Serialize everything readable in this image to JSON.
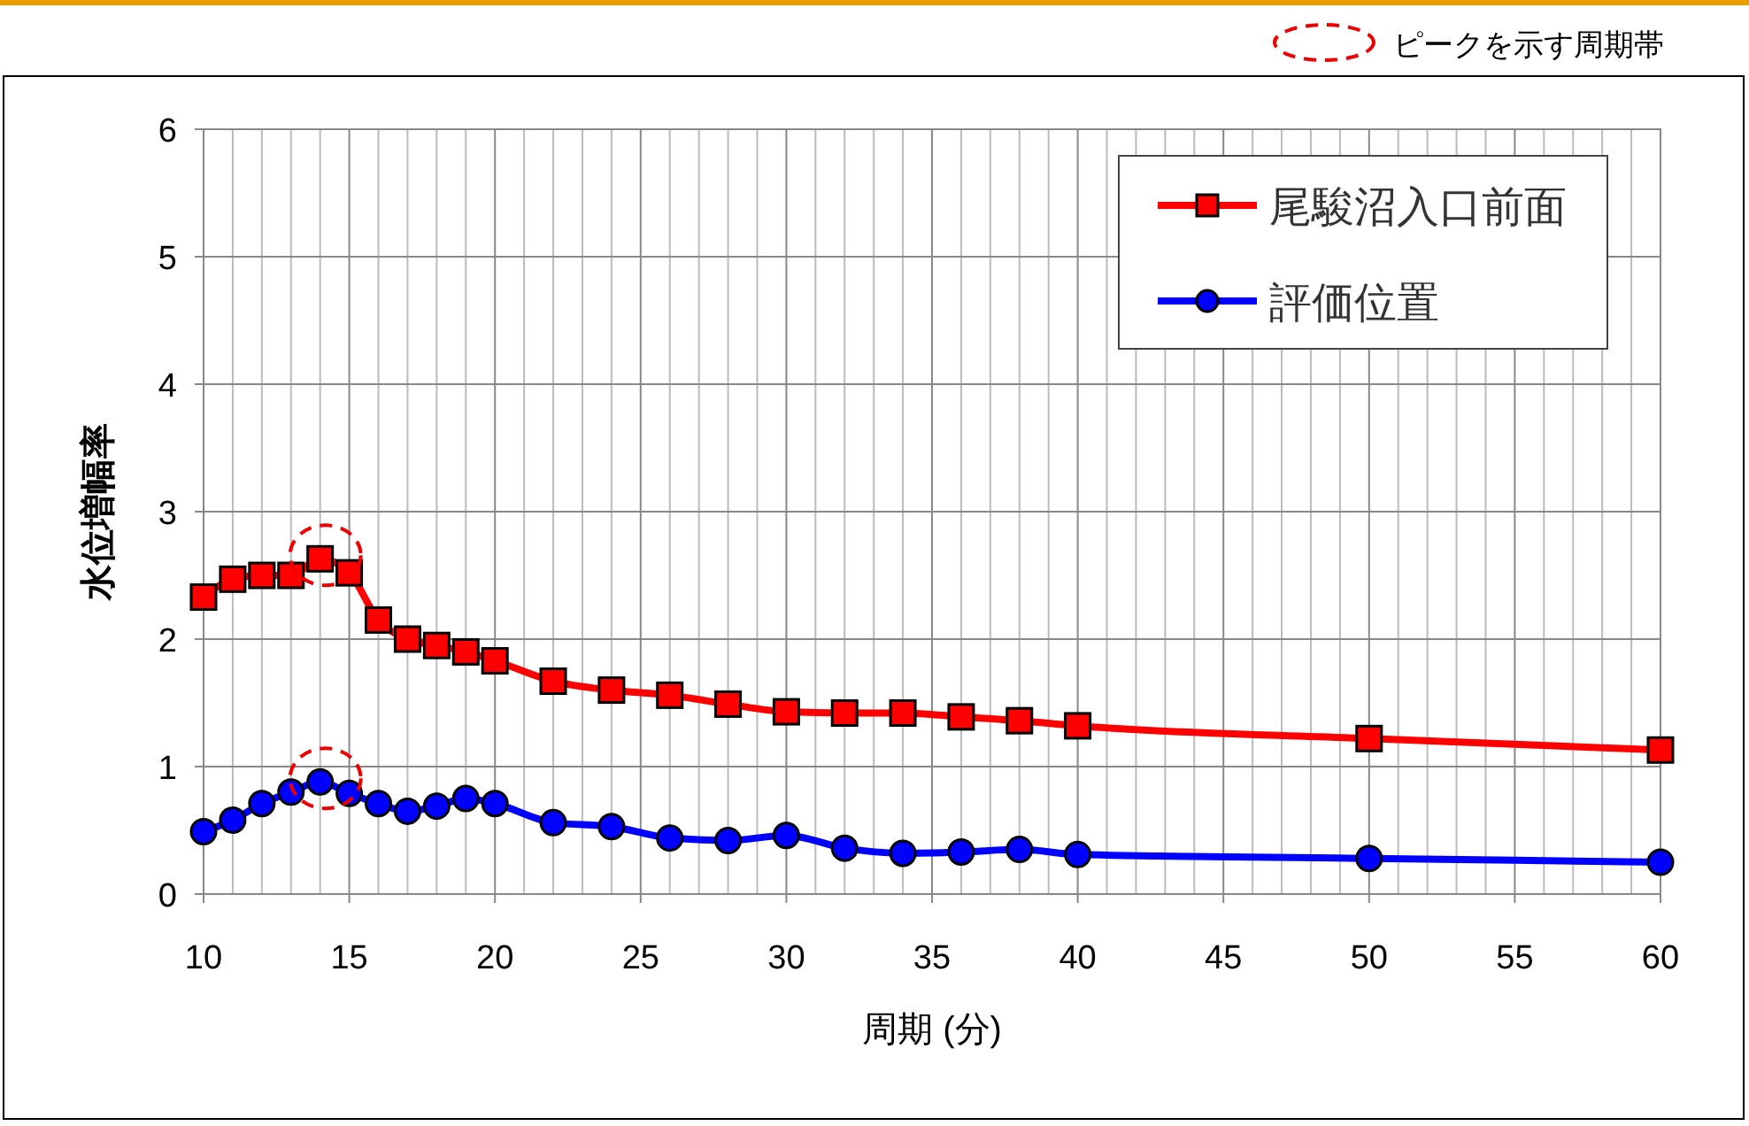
{
  "chart_data": {
    "type": "line",
    "xlabel": "周期 (分)",
    "ylabel": "水位増幅率",
    "annotations": [
      "ピークを示す周期帯"
    ],
    "x": [
      10,
      11,
      12,
      13,
      14,
      15,
      16,
      17,
      18,
      19,
      20,
      22,
      24,
      26,
      28,
      30,
      32,
      34,
      36,
      38,
      40,
      50,
      60
    ],
    "series": [
      {
        "name": "尾駿沼入口前面",
        "color": "#ff0000",
        "marker": "square",
        "values": [
          2.33,
          2.47,
          2.5,
          2.5,
          2.63,
          2.52,
          2.15,
          2.0,
          1.95,
          1.9,
          1.83,
          1.67,
          1.6,
          1.56,
          1.49,
          1.43,
          1.42,
          1.42,
          1.39,
          1.36,
          1.32,
          1.22,
          1.13
        ]
      },
      {
        "name": "評価位置",
        "color": "#0000ff",
        "marker": "circle",
        "values": [
          0.49,
          0.58,
          0.71,
          0.8,
          0.88,
          0.79,
          0.71,
          0.65,
          0.69,
          0.75,
          0.71,
          0.56,
          0.53,
          0.44,
          0.42,
          0.46,
          0.36,
          0.32,
          0.33,
          0.35,
          0.31,
          0.28,
          0.25
        ]
      }
    ],
    "xlim": [
      10,
      60
    ],
    "xticks": [
      10,
      15,
      20,
      25,
      30,
      35,
      40,
      45,
      50,
      55,
      60
    ],
    "ylim": [
      0,
      6
    ],
    "yticks": [
      0,
      1,
      2,
      3,
      4,
      5,
      6
    ],
    "grid": true,
    "legend": "top right",
    "line_style": "solid"
  }
}
